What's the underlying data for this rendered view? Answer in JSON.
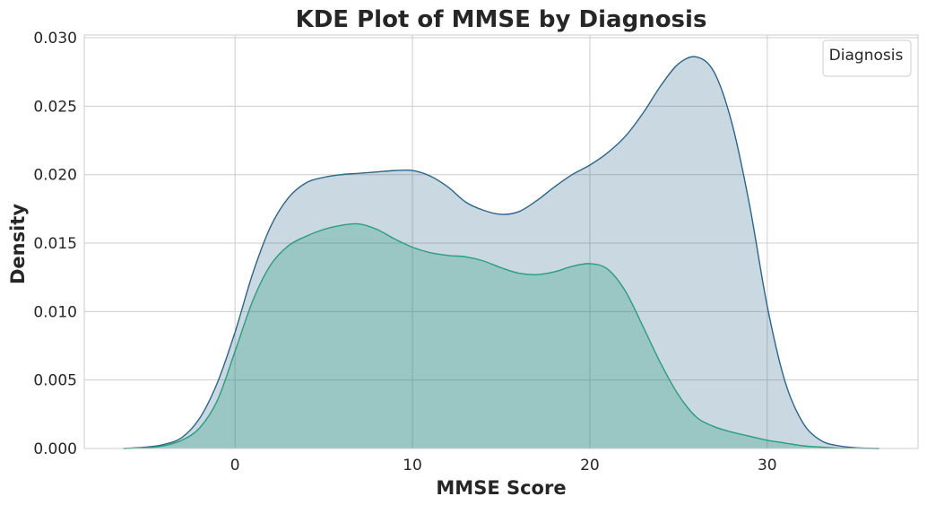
{
  "chart_data": {
    "type": "area",
    "title": "KDE Plot of MMSE by Diagnosis",
    "xlabel": "MMSE Score",
    "ylabel": "Density",
    "xlim": [
      -8.5,
      38.5
    ],
    "ylim": [
      0,
      0.0302
    ],
    "xticks": [
      0,
      10,
      20,
      30
    ],
    "xtick_labels": [
      "0",
      "10",
      "20",
      "30"
    ],
    "yticks": [
      0,
      0.005,
      0.01,
      0.015,
      0.02,
      0.025,
      0.03
    ],
    "ytick_labels": [
      "0.000",
      "0.005",
      "0.010",
      "0.015",
      "0.020",
      "0.025",
      "0.030"
    ],
    "grid": true,
    "legend": {
      "title": "Diagnosis",
      "position": "top-right",
      "entries": []
    },
    "series": [
      {
        "color": "#2b6589",
        "fill_opacity": 0.25,
        "x": [
          -6.3,
          -5,
          -4,
          -3,
          -2,
          -1,
          0,
          1,
          2,
          3,
          4,
          5,
          6,
          7,
          8,
          9,
          10,
          11,
          12,
          13,
          14,
          15,
          16,
          17,
          18,
          19,
          20,
          21,
          22,
          23,
          24,
          25,
          26,
          27,
          28,
          29,
          30,
          31,
          32,
          33,
          34,
          35,
          36.3
        ],
        "y": [
          0.0,
          0.0001,
          0.0003,
          0.0008,
          0.0022,
          0.0048,
          0.0085,
          0.0128,
          0.0162,
          0.0183,
          0.0194,
          0.0198,
          0.02,
          0.0201,
          0.0202,
          0.0203,
          0.0203,
          0.0199,
          0.0191,
          0.018,
          0.0174,
          0.0171,
          0.0173,
          0.0181,
          0.0191,
          0.02,
          0.0207,
          0.0216,
          0.0228,
          0.0245,
          0.0265,
          0.0281,
          0.0286,
          0.0275,
          0.0238,
          0.0178,
          0.0104,
          0.0049,
          0.0019,
          0.0006,
          0.0002,
          5e-05,
          0.0
        ]
      },
      {
        "color": "#2a9d7e",
        "fill_opacity": 0.3,
        "x": [
          -6.3,
          -5,
          -4,
          -3,
          -2,
          -1,
          0,
          1,
          2,
          3,
          4,
          5,
          6,
          7,
          8,
          9,
          10,
          11,
          12,
          13,
          14,
          15,
          16,
          17,
          18,
          19,
          20,
          21,
          22,
          23,
          24,
          25,
          26,
          27,
          28,
          29,
          30,
          31,
          32,
          33,
          34,
          35,
          36.3
        ],
        "y": [
          0.0,
          5e-05,
          0.0002,
          0.0006,
          0.0015,
          0.0035,
          0.0071,
          0.0108,
          0.0134,
          0.0148,
          0.0155,
          0.016,
          0.0163,
          0.0164,
          0.016,
          0.0153,
          0.0147,
          0.0143,
          0.0141,
          0.014,
          0.0137,
          0.0132,
          0.0128,
          0.0127,
          0.0129,
          0.0133,
          0.0135,
          0.0131,
          0.0115,
          0.0089,
          0.0062,
          0.0039,
          0.0023,
          0.0016,
          0.0012,
          0.0009,
          0.0006,
          0.0004,
          0.0002,
          0.0001,
          3e-05,
          1e-05,
          0.0
        ]
      }
    ]
  }
}
